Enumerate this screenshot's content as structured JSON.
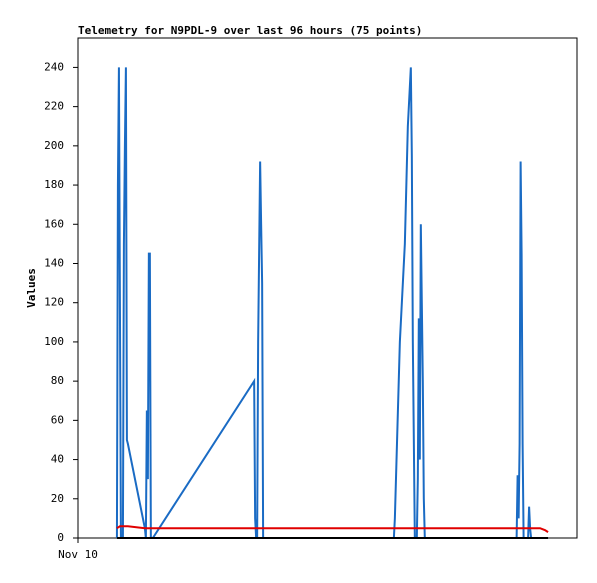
{
  "chart_data": {
    "type": "line",
    "title": "Telemetry for N9PDL-9 over last 96 hours (75 points)",
    "y_label": "Values",
    "xlim": [
      0,
      100
    ],
    "xticks": [
      {
        "value": 0,
        "label": "Nov 10"
      }
    ],
    "ylim": [
      0,
      255
    ],
    "yticks": [
      0,
      20,
      40,
      60,
      80,
      100,
      120,
      140,
      160,
      180,
      200,
      220,
      240
    ],
    "grid": false,
    "series": [
      {
        "color": "#1a6bc4",
        "x": [
          7.8,
          8.0,
          8.2,
          8.4,
          8.6,
          9.0,
          9.2,
          9.4,
          9.6,
          9.8,
          10.0,
          13.4,
          13.6,
          13.8,
          14.0,
          14.2,
          14.4,
          14.6,
          15.0,
          35.3,
          35.5,
          35.7,
          35.9,
          36.1,
          36.5,
          36.7,
          36.9,
          37.1,
          63.3,
          63.5,
          64.5,
          65.5,
          66.1,
          66.5,
          66.7,
          66.9,
          67.1,
          67.5,
          67.9,
          68.1,
          68.3,
          68.5,
          68.7,
          68.9,
          69.1,
          69.3,
          69.5,
          87.9,
          88.1,
          88.3,
          88.5,
          88.7,
          88.9,
          89.1,
          89.3,
          90.2,
          90.4,
          90.6,
          90.8
        ],
        "values": [
          0,
          180,
          240,
          120,
          0,
          0,
          150,
          200,
          240,
          50,
          48,
          5,
          0,
          65,
          30,
          145,
          145,
          0,
          0,
          80,
          10,
          0,
          0,
          100,
          192,
          160,
          130,
          0,
          0,
          10,
          100,
          150,
          210,
          230,
          240,
          195,
          100,
          0,
          0,
          30,
          112,
          40,
          160,
          120,
          80,
          20,
          0,
          0,
          32,
          10,
          48,
          192,
          145,
          48,
          0,
          0,
          16,
          5,
          0
        ]
      },
      {
        "color": "#e00000",
        "x": [
          7.8,
          8.4,
          10.0,
          13.4,
          64.5,
          92.6,
          93.6,
          94.2
        ],
        "values": [
          5,
          6,
          6,
          5,
          5,
          5,
          4,
          3
        ]
      },
      {
        "color": "#000000",
        "x": [
          7.8,
          94.2
        ],
        "values": [
          0,
          0
        ]
      }
    ]
  }
}
